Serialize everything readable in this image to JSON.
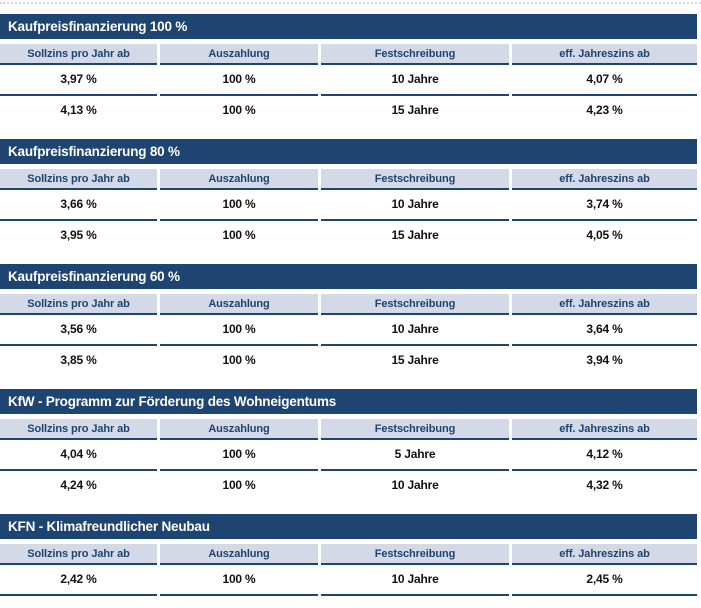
{
  "columns": [
    "Sollzins pro Jahr ab",
    "Auszahlung",
    "Festschreibung",
    "eff. Jahreszins ab"
  ],
  "sections": [
    {
      "title": "Kaufpreisfinanzierung 100 %",
      "rows": [
        [
          "3,97 %",
          "100 %",
          "10 Jahre",
          "4,07 %"
        ],
        [
          "4,13 %",
          "100 %",
          "15 Jahre",
          "4,23 %"
        ]
      ],
      "last_row_divider": false
    },
    {
      "title": "Kaufpreisfinanzierung 80 %",
      "rows": [
        [
          "3,66 %",
          "100 %",
          "10 Jahre",
          "3,74 %"
        ],
        [
          "3,95 %",
          "100 %",
          "15 Jahre",
          "4,05 %"
        ]
      ],
      "last_row_divider": false
    },
    {
      "title": "Kaufpreisfinanzierung 60 %",
      "rows": [
        [
          "3,56 %",
          "100 %",
          "10 Jahre",
          "3,64 %"
        ],
        [
          "3,85 %",
          "100 %",
          "15 Jahre",
          "3,94 %"
        ]
      ],
      "last_row_divider": false
    },
    {
      "title": "KfW - Programm zur Förderung des Wohneigentums",
      "rows": [
        [
          "4,04 %",
          "100 %",
          "5 Jahre",
          "4,12 %"
        ],
        [
          "4,24 %",
          "100 %",
          "10 Jahre",
          "4,32 %"
        ]
      ],
      "last_row_divider": false
    },
    {
      "title": "KFN - Klimafreundlicher Neubau",
      "rows": [
        [
          "2,42 %",
          "100 %",
          "10 Jahre",
          "2,45 %"
        ]
      ],
      "last_row_divider": true
    }
  ],
  "colors": {
    "navy": "#1e4471",
    "header_row_bg": "#d3d9e7",
    "data_text": "#111111",
    "top_divider": "#d5d5de"
  }
}
